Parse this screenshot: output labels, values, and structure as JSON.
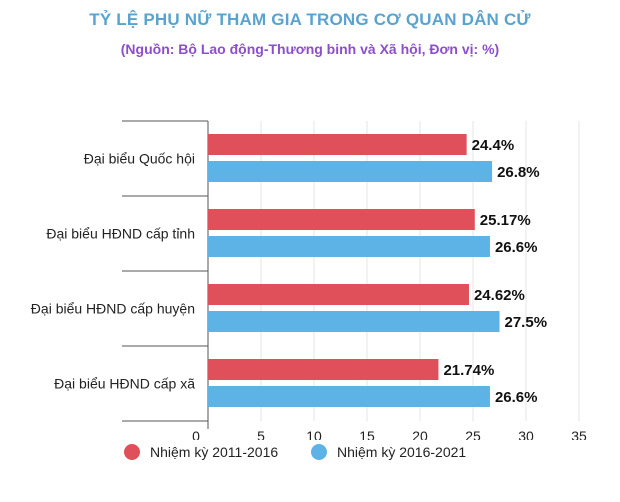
{
  "title": "TỶ LỆ PHỤ NỮ THAM GIA TRONG CƠ QUAN DÂN CỬ",
  "subtitle": "(Nguồn:  Bộ Lao động-Thương binh và Xã hội, Đơn vị: %)",
  "colors": {
    "series_2011_2016": "#e0505a",
    "series_2016_2021": "#5db3e6",
    "title": "#5aa3cf",
    "subtitle": "#8b4fc8"
  },
  "chart_data": {
    "type": "bar",
    "orientation": "horizontal",
    "categories": [
      "Đại biểu Quốc hội",
      "Đại biểu HĐND cấp tỉnh",
      "Đại biểu HĐND cấp huyện",
      "Đại biểu HĐND cấp xã"
    ],
    "series": [
      {
        "name": "Nhiệm kỳ 2011-2016",
        "values": [
          24.4,
          25.17,
          24.62,
          21.74
        ],
        "labels": [
          "24.4%",
          "25.17%",
          "24.62%",
          "21.74%"
        ]
      },
      {
        "name": "Nhiệm kỳ 2016-2021",
        "values": [
          26.8,
          26.6,
          27.5,
          26.6
        ],
        "labels": [
          "26.8%",
          "26.6%",
          "27.5%",
          "26.6%"
        ]
      }
    ],
    "xlim": [
      0,
      35
    ],
    "xticks": [
      "0",
      "5",
      "10",
      "15",
      "20",
      "25",
      "30",
      "35"
    ],
    "grid": true,
    "legend_position": "bottom"
  }
}
